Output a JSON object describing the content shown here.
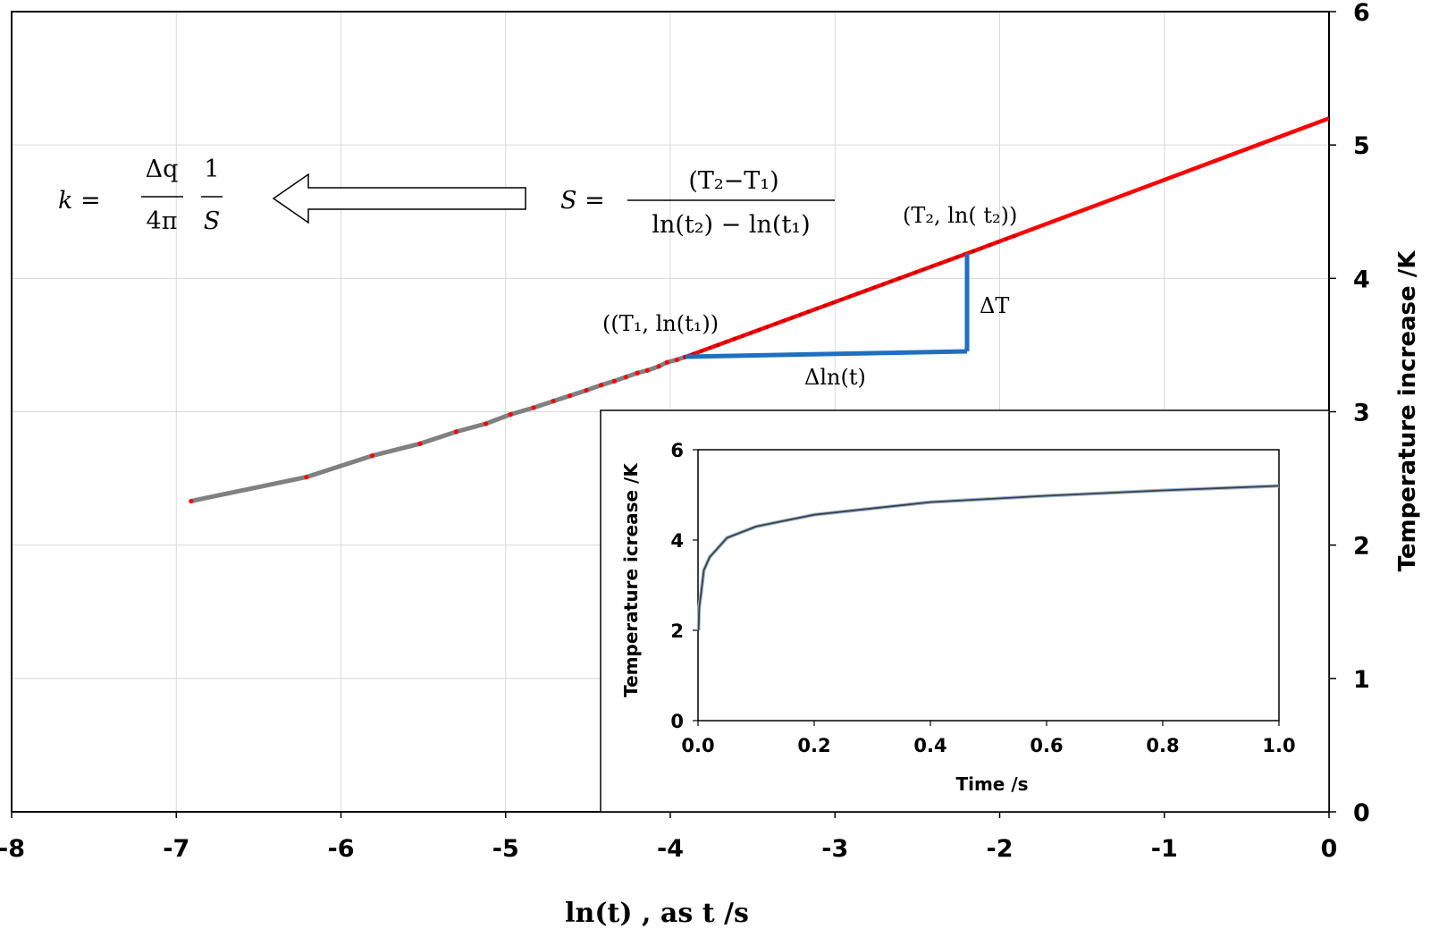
{
  "chart_data": [
    {
      "type": "line",
      "xlabel": "ln(t) , as  t /s",
      "ylabel": "Temperature increase /K",
      "xlim": [
        -8,
        0
      ],
      "ylim": [
        0,
        6
      ],
      "x_ticks": [
        "-8",
        "-7",
        "-6",
        "-5",
        "-4",
        "-3",
        "-2",
        "-1",
        "0"
      ],
      "y_ticks": [
        "0",
        "1",
        "2",
        "3",
        "4",
        "5",
        "6"
      ],
      "y_axis_side": "right",
      "grid": true,
      "series": [
        {
          "color": "#808080",
          "x": [
            -6.91,
            -6.21,
            -5.81,
            -5.52,
            -5.3,
            -5.12,
            -4.97,
            -4.83,
            -4.71,
            -4.61,
            -4.51,
            -4.42,
            -4.34,
            -4.27,
            -4.2,
            -4.14,
            -4.07,
            -4.02,
            -3.96,
            -3.91
          ],
          "y": [
            2.33,
            2.51,
            2.67,
            2.76,
            2.85,
            2.91,
            2.98,
            3.03,
            3.08,
            3.12,
            3.16,
            3.2,
            3.23,
            3.26,
            3.29,
            3.31,
            3.34,
            3.37,
            3.39,
            3.41
          ]
        },
        {
          "color": "#ff0000",
          "x": [
            -3.91,
            -2.19,
            0
          ],
          "y": [
            3.41,
            4.19,
            5.2
          ]
        }
      ],
      "annotations": {
        "slope_eq_lhs": "S =",
        "slope_num": "(T₂−T₁)",
        "slope_den": "ln(t₂) − ln(t₁)",
        "k_lhs": "k  =",
        "k_frac1_num": "Δq",
        "k_frac1_den": "4π",
        "k_frac2_num": "1",
        "k_frac2_den": "S",
        "point1": "((T₁, ln(t₁))",
        "point2": "(T₂, ln( t₂))",
        "delta_t": "ΔT",
        "delta_lnt": "Δln(t)"
      }
    },
    {
      "type": "line",
      "xlabel": "Time /s",
      "ylabel": "Temperature icrease /K",
      "xlim": [
        0,
        1
      ],
      "ylim": [
        0,
        6
      ],
      "x_ticks": [
        "0.0",
        "0.2",
        "0.4",
        "0.6",
        "0.8",
        "1.0"
      ],
      "y_ticks": [
        "0",
        "2",
        "4",
        "6"
      ],
      "grid": false,
      "series": [
        {
          "color": "#404040",
          "x": [
            0.001,
            0.002,
            0.005,
            0.01,
            0.02,
            0.05,
            0.1,
            0.2,
            0.4,
            0.6,
            0.8,
            1.0
          ],
          "y": [
            2.0,
            2.5,
            2.8,
            3.33,
            3.62,
            4.05,
            4.3,
            4.56,
            4.84,
            4.98,
            5.1,
            5.2
          ]
        }
      ]
    }
  ]
}
